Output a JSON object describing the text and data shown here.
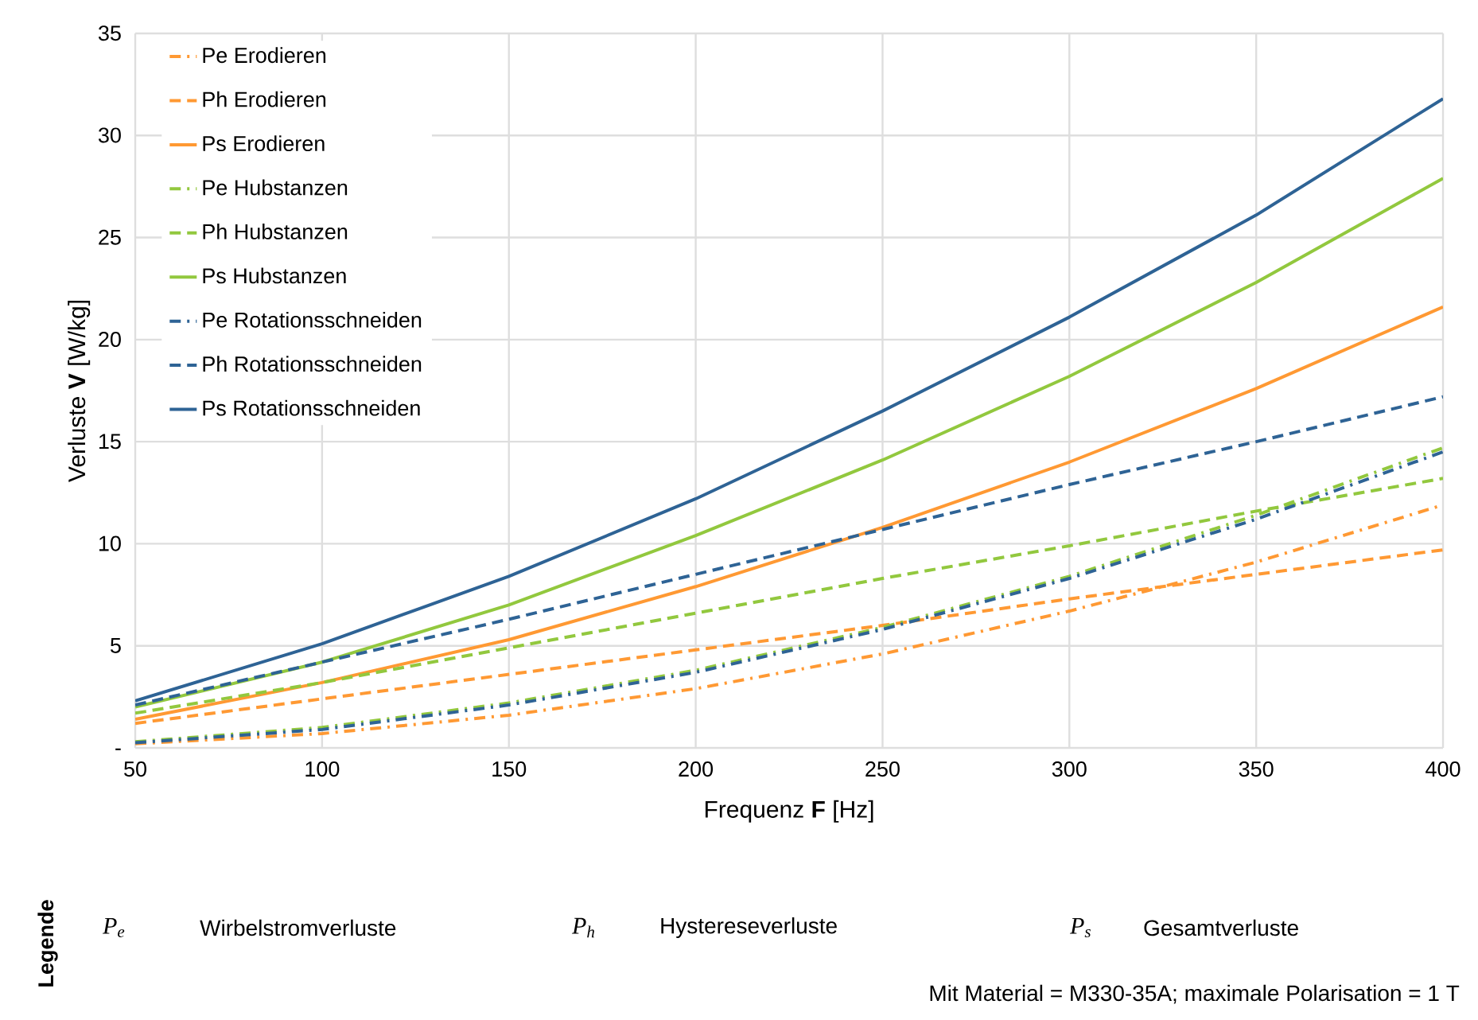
{
  "chart_data": {
    "type": "line",
    "xlabel": "Frequenz **F** [Hz]",
    "ylabel": "Verluste **V** [W/kg]",
    "x": [
      50,
      100,
      150,
      200,
      250,
      300,
      350,
      400
    ],
    "xlim": [
      50,
      400
    ],
    "xticks": [
      50,
      100,
      150,
      200,
      250,
      300,
      350,
      400
    ],
    "ylim": [
      0,
      35
    ],
    "yticks": [
      {
        "value": 0,
        "label": "-"
      },
      5,
      10,
      15,
      20,
      25,
      30,
      35
    ],
    "grid": true,
    "legend": "top left",
    "marker": "none",
    "series": [
      {
        "name": "Pe Erodieren",
        "color": "#ff9933",
        "line_style": "dashdot",
        "values": [
          0.2,
          0.7,
          1.6,
          2.9,
          4.6,
          6.7,
          9.1,
          11.9
        ]
      },
      {
        "name": "Ph Erodieren",
        "color": "#ff9933",
        "line_style": "dashed",
        "values": [
          1.2,
          2.4,
          3.6,
          4.8,
          6.0,
          7.3,
          8.5,
          9.7
        ]
      },
      {
        "name": "Ps Erodieren",
        "color": "#ff9933",
        "line_style": "solid",
        "values": [
          1.4,
          3.2,
          5.3,
          7.9,
          10.8,
          14.0,
          17.6,
          21.6
        ]
      },
      {
        "name": "Pe Hubstanzen",
        "color": "#92c83e",
        "line_style": "dashdot",
        "values": [
          0.3,
          1.0,
          2.2,
          3.8,
          5.9,
          8.4,
          11.4,
          14.7
        ]
      },
      {
        "name": "Ph Hubstanzen",
        "color": "#92c83e",
        "line_style": "dashed",
        "values": [
          1.7,
          3.2,
          4.9,
          6.6,
          8.3,
          9.9,
          11.6,
          13.2
        ]
      },
      {
        "name": "Ps Hubstanzen",
        "color": "#92c83e",
        "line_style": "solid",
        "values": [
          2.0,
          4.2,
          7.0,
          10.4,
          14.1,
          18.2,
          22.8,
          27.9
        ]
      },
      {
        "name": "Pe Rotationsschneiden",
        "color": "#2e6395",
        "line_style": "dashdot",
        "values": [
          0.25,
          0.9,
          2.1,
          3.7,
          5.8,
          8.3,
          11.2,
          14.5
        ]
      },
      {
        "name": "Ph Rotationsschneiden",
        "color": "#2e6395",
        "line_style": "dashed",
        "values": [
          2.1,
          4.2,
          6.3,
          8.5,
          10.7,
          12.9,
          15.0,
          17.2
        ]
      },
      {
        "name": "Ps Rotationsschneiden",
        "color": "#2e6395",
        "line_style": "solid",
        "values": [
          2.3,
          5.1,
          8.4,
          12.2,
          16.5,
          21.1,
          26.1,
          31.8
        ]
      }
    ],
    "annotations": [
      "Legende",
      "P$_{e}$",
      "Wirbelstromverluste",
      "P$_{h}$",
      "Hystereseverluste",
      "P$_{s}$",
      "Gesamtverluste",
      "Mit Material = M330-35A; maximale Polarisation = 1 T"
    ]
  }
}
